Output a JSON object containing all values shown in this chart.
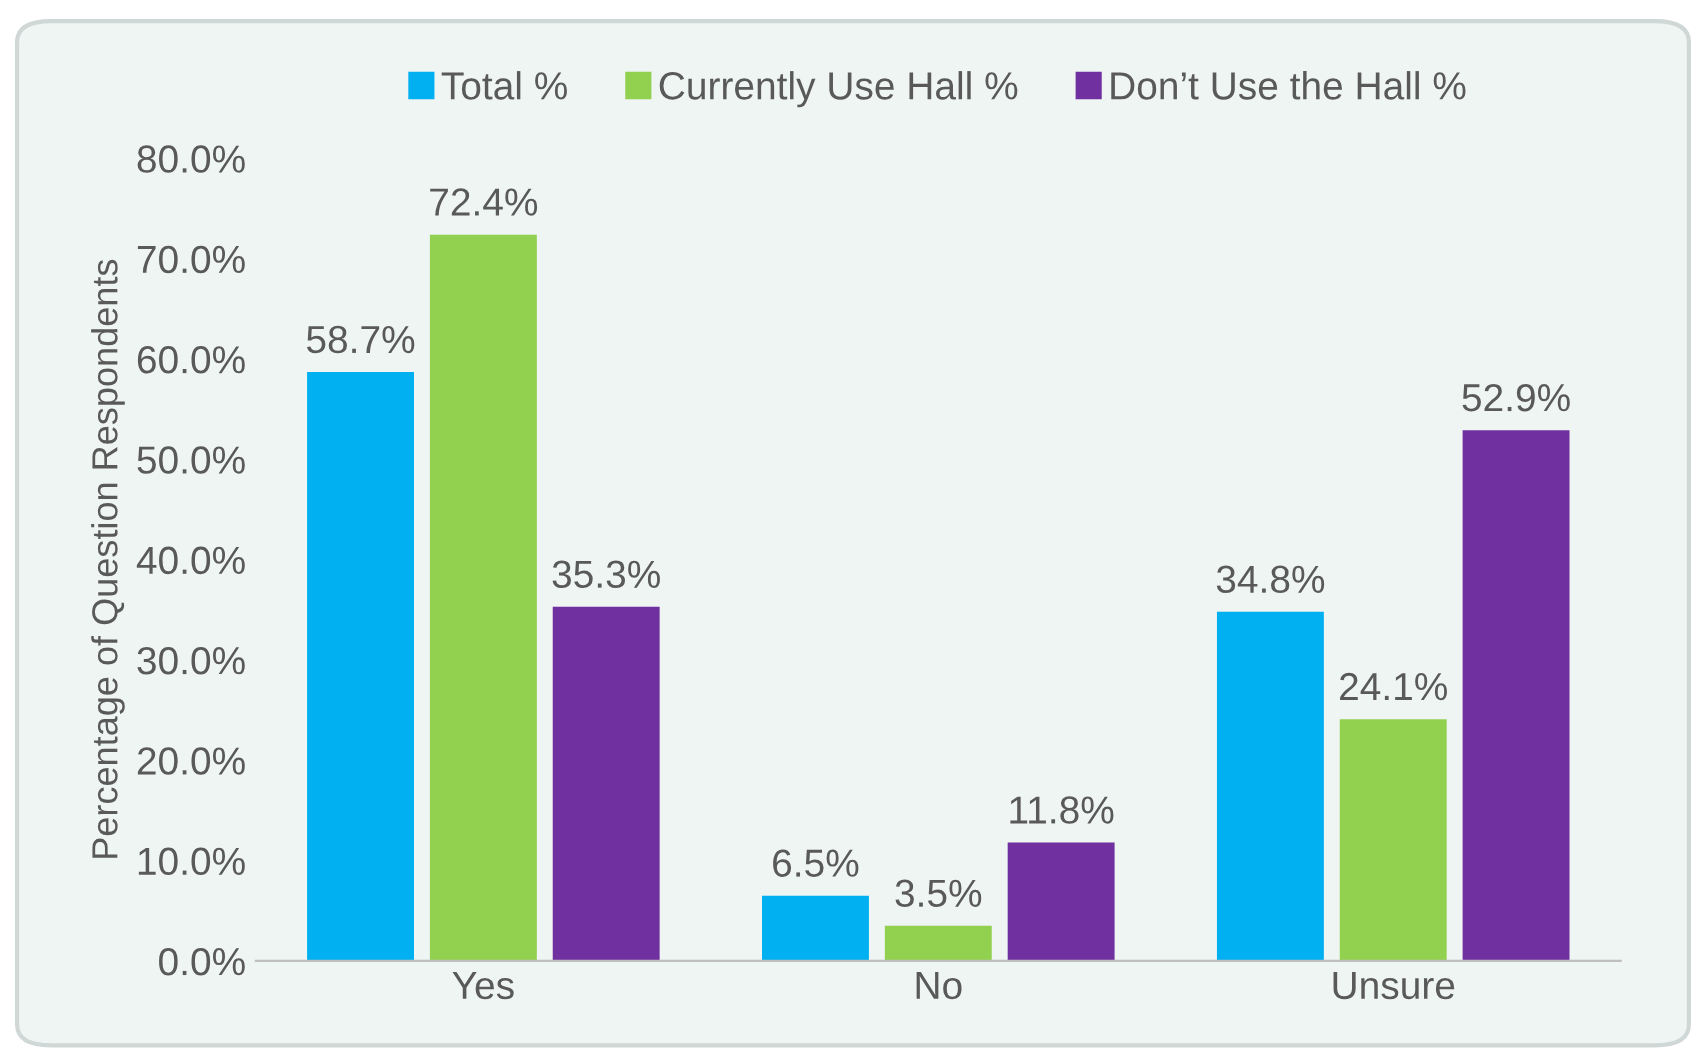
{
  "chart_data": {
    "type": "bar",
    "ylabel": "Percentage of Question Respondents",
    "categories": [
      "Yes",
      "No",
      "Unsure"
    ],
    "series": [
      {
        "name": "Total %",
        "color": "#00b0f0",
        "values": [
          58.7,
          6.5,
          34.8
        ],
        "value_labels": [
          "58.7%",
          "6.5%",
          "34.8%"
        ]
      },
      {
        "name": "Currently Use Hall %",
        "color": "#92d050",
        "values": [
          72.4,
          3.5,
          24.1
        ],
        "value_labels": [
          "72.4%",
          "3.5%",
          "24.1%"
        ]
      },
      {
        "name": "Don’t Use the Hall %",
        "color": "#7030a0",
        "values": [
          35.3,
          11.8,
          52.9
        ],
        "value_labels": [
          "35.3%",
          "11.8%",
          "52.9%"
        ]
      }
    ],
    "ylim": [
      0,
      80
    ],
    "yticks": [
      {
        "value": 0,
        "label": "0.0%"
      },
      {
        "value": 10,
        "label": "10.0%"
      },
      {
        "value": 20,
        "label": "20.0%"
      },
      {
        "value": 30,
        "label": "30.0%"
      },
      {
        "value": 40,
        "label": "40.0%"
      },
      {
        "value": 50,
        "label": "50.0%"
      },
      {
        "value": 60,
        "label": "60.0%"
      },
      {
        "value": 70,
        "label": "70.0%"
      },
      {
        "value": 80,
        "label": "80.0%"
      }
    ],
    "grid": false,
    "legend": "top"
  }
}
